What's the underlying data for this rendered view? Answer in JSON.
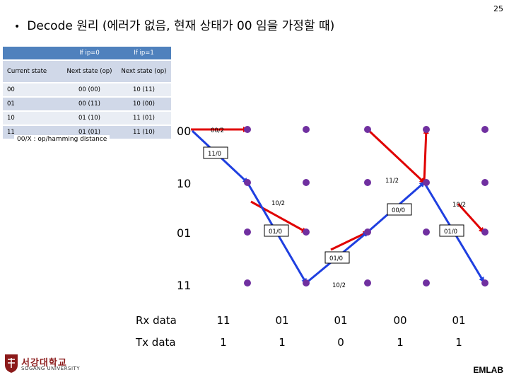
{
  "page_number": "25",
  "title": {
    "bullet": "•",
    "text": "Decode 원리 (에러가 없음, 현재 상태가 00 임을 가정할 때)"
  },
  "table": {
    "header_row1": [
      "",
      "If ip=0",
      "If ip=1"
    ],
    "header_row2": [
      "Current state",
      "Next state (op)",
      "Next state (op)"
    ],
    "rows": [
      [
        "00",
        "00 (00)",
        "10 (11)"
      ],
      [
        "01",
        "00 (11)",
        "10 (00)"
      ],
      [
        "10",
        "01 (10)",
        "11 (01)"
      ],
      [
        "11",
        "01 (01)",
        "11 (10)"
      ]
    ]
  },
  "legend_note": "00/X : op/hamming distance",
  "states": [
    "00",
    "10",
    "01",
    "11"
  ],
  "edge_labels": {
    "e1": "00/2",
    "e2": "11/0",
    "e3": "10/2",
    "e4": "01/0",
    "e5": "10/2",
    "e6": "11/2",
    "e7": "00/0",
    "e8": "01/0",
    "e9": "10/2",
    "e10": "01/0"
  },
  "rx": {
    "label": "Rx data",
    "values": [
      "11",
      "01",
      "01",
      "00",
      "01"
    ]
  },
  "tx": {
    "label": "Tx data",
    "values": [
      "1",
      "1",
      "0",
      "1",
      "1"
    ]
  },
  "colors": {
    "node": "#7030a0",
    "path_red": "#e00000",
    "path_blue": "#1f3fe0",
    "table_header": "#4f81bd"
  },
  "footer": {
    "lab": "EMLAB",
    "university_kr": "서강대학교",
    "university_en": "SOGANG UNIVERSITY"
  }
}
